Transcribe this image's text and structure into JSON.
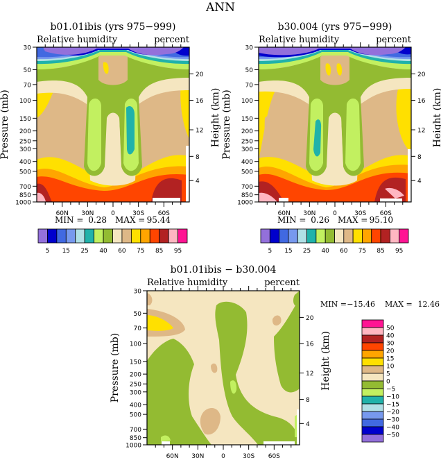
{
  "page_title": "ANN",
  "chart_data": [
    {
      "type": "heatmap",
      "id": "panel-case1",
      "title": "b01.01ibis (yrs 975−999)",
      "left_label": "Relative humidity",
      "right_label": "percent",
      "ylabel": "Pressure (mb)",
      "ylabel_right": "Height (km)",
      "x_ticks": [
        "60N",
        "30N",
        "0",
        "30S",
        "60S"
      ],
      "x_tick_values": [
        60,
        30,
        0,
        -30,
        -60
      ],
      "xlim": [
        90,
        -90
      ],
      "y_ticks": [
        "30",
        "50",
        "70",
        "100",
        "150",
        "200",
        "250",
        "300",
        "400",
        "500",
        "700",
        "850",
        "1000"
      ],
      "y_tick_values": [
        30,
        50,
        70,
        100,
        150,
        200,
        250,
        300,
        400,
        500,
        700,
        850,
        1000
      ],
      "ylim": [
        30,
        1000
      ],
      "y_right_ticks": [
        "20",
        "16",
        "12",
        "8",
        "4"
      ],
      "stats": {
        "min_label": "MIN =",
        "min": "0.28",
        "max_label": "MAX =",
        "max": "95.44"
      },
      "colorbar": {
        "orientation": "horizontal",
        "labels": [
          "5",
          "15",
          "25",
          "40",
          "60",
          "75",
          "85",
          "95"
        ],
        "levels": [
          5,
          10,
          15,
          20,
          25,
          30,
          40,
          50,
          60,
          70,
          75,
          80,
          85,
          90,
          95
        ],
        "colors": [
          "#9370db",
          "#0000cd",
          "#4169e1",
          "#7799ee",
          "#b0e0e6",
          "#20b2aa",
          "#c2f060",
          "#93bb32",
          "#f5e6c0",
          "#deb887",
          "#ffe000",
          "#ffa500",
          "#ff4500",
          "#b22222",
          "#ffb6c1",
          "#ff1493"
        ]
      }
    },
    {
      "type": "heatmap",
      "id": "panel-case2",
      "title": "b30.004 (yrs 975−999)",
      "left_label": "Relative humidity",
      "right_label": "percent",
      "ylabel": "Pressure (mb)",
      "ylabel_right": "Height (km)",
      "x_ticks": [
        "60N",
        "30N",
        "0",
        "30S",
        "60S"
      ],
      "x_tick_values": [
        60,
        30,
        0,
        -30,
        -60
      ],
      "xlim": [
        90,
        -90
      ],
      "y_ticks": [
        "30",
        "50",
        "70",
        "100",
        "150",
        "200",
        "250",
        "300",
        "400",
        "500",
        "700",
        "850",
        "1000"
      ],
      "y_tick_values": [
        30,
        50,
        70,
        100,
        150,
        200,
        250,
        300,
        400,
        500,
        700,
        850,
        1000
      ],
      "ylim": [
        30,
        1000
      ],
      "y_right_ticks": [
        "20",
        "16",
        "12",
        "8",
        "4"
      ],
      "stats": {
        "min_label": "MIN =",
        "min": "0.26",
        "max_label": "MAX =",
        "max": "95.10"
      },
      "colorbar": {
        "orientation": "horizontal",
        "labels": [
          "5",
          "15",
          "25",
          "40",
          "60",
          "75",
          "85",
          "95"
        ],
        "levels": [
          5,
          10,
          15,
          20,
          25,
          30,
          40,
          50,
          60,
          70,
          75,
          80,
          85,
          90,
          95
        ],
        "colors": [
          "#9370db",
          "#0000cd",
          "#4169e1",
          "#7799ee",
          "#b0e0e6",
          "#20b2aa",
          "#c2f060",
          "#93bb32",
          "#f5e6c0",
          "#deb887",
          "#ffe000",
          "#ffa500",
          "#ff4500",
          "#b22222",
          "#ffb6c1",
          "#ff1493"
        ]
      }
    },
    {
      "type": "heatmap",
      "id": "panel-diff",
      "title": "b01.01ibis − b30.004",
      "left_label": "Relative humidity",
      "right_label": "percent",
      "ylabel": "Pressure (mb)",
      "ylabel_right": "Height (km)",
      "x_ticks": [
        "60N",
        "30N",
        "0",
        "30S",
        "60S"
      ],
      "x_tick_values": [
        60,
        30,
        0,
        -30,
        -60
      ],
      "xlim": [
        90,
        -90
      ],
      "y_ticks": [
        "30",
        "50",
        "70",
        "100",
        "150",
        "200",
        "250",
        "300",
        "400",
        "500",
        "700",
        "850",
        "1000"
      ],
      "y_tick_values": [
        30,
        50,
        70,
        100,
        150,
        200,
        250,
        300,
        400,
        500,
        700,
        850,
        1000
      ],
      "ylim": [
        30,
        1000
      ],
      "y_right_ticks": [
        "20",
        "16",
        "12",
        "8",
        "4"
      ],
      "stats": {
        "min_label": "MIN =",
        "min": "−15.46",
        "max_label": "MAX =",
        "max": "12.46"
      },
      "colorbar": {
        "orientation": "vertical",
        "labels": [
          "50",
          "40",
          "30",
          "20",
          "15",
          "10",
          "5",
          "0",
          "−5",
          "−10",
          "−15",
          "−20",
          "−30",
          "−40",
          "−50"
        ],
        "levels": [
          50,
          40,
          30,
          20,
          15,
          10,
          5,
          0,
          -5,
          -10,
          -15,
          -20,
          -30,
          -40,
          -50
        ],
        "colors": [
          "#ff1493",
          "#ffb6c1",
          "#b22222",
          "#ff4500",
          "#ffa500",
          "#ffe000",
          "#deb887",
          "#f5e6c0",
          "#93bb32",
          "#c2f060",
          "#20b2aa",
          "#b0e0e6",
          "#7799ee",
          "#4169e1",
          "#0000cd",
          "#9370db"
        ]
      }
    }
  ]
}
